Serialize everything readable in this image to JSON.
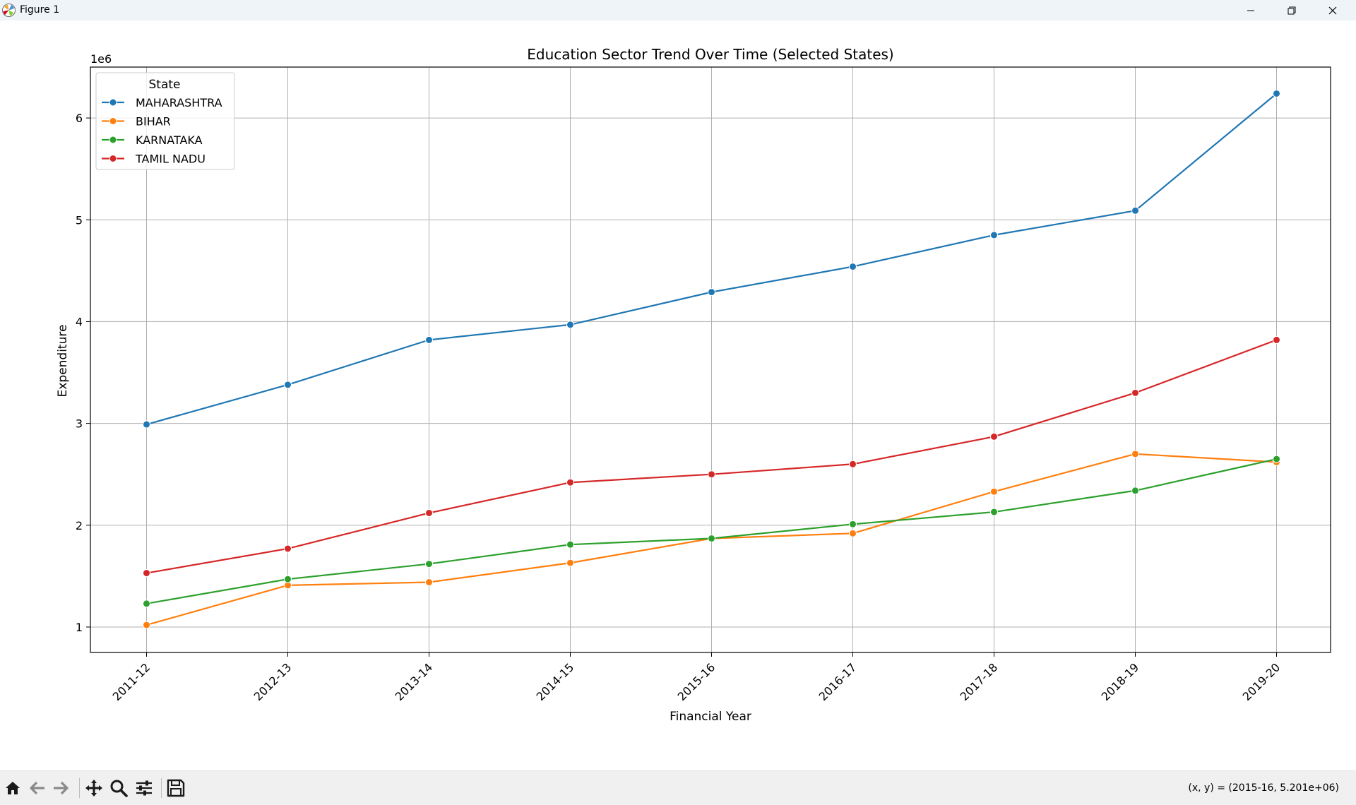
{
  "window": {
    "title": "Figure 1"
  },
  "toolbar": {
    "icons": [
      "home-icon",
      "back-arrow-icon",
      "forward-arrow-icon",
      "pan-move-icon",
      "zoom-magnifier-icon",
      "configure-subplots-icon",
      "save-floppy-icon"
    ],
    "coordinate_readout": "(x, y) = (2015-16, 5.201e+06)"
  },
  "colors": {
    "series": [
      "#1f77b4",
      "#ff7f0e",
      "#2ca02c",
      "#d62728"
    ],
    "grid": "#b0b0b0",
    "titlebar": "#eff4f9",
    "toolbar": "#f0f0f0"
  },
  "chart_data": {
    "type": "line",
    "title": "Education Sector Trend Over Time (Selected States)",
    "xlabel": "Financial Year",
    "ylabel": "Expenditure",
    "y_offset_label": "1e6",
    "categories": [
      "2011-12",
      "2012-13",
      "2013-14",
      "2014-15",
      "2015-16",
      "2016-17",
      "2017-18",
      "2018-19",
      "2019-20"
    ],
    "ylim": [
      750000,
      6500000
    ],
    "yticks": [
      1000000,
      2000000,
      3000000,
      4000000,
      5000000,
      6000000
    ],
    "ytick_labels": [
      "1",
      "2",
      "3",
      "4",
      "5",
      "6"
    ],
    "grid": true,
    "legend": {
      "title": "State",
      "placement": "top-left"
    },
    "markers": "circle",
    "series": [
      {
        "name": "MAHARASHTRA",
        "values": [
          2990000,
          3380000,
          3820000,
          3970000,
          4290000,
          4540000,
          4850000,
          5090000,
          6240000
        ]
      },
      {
        "name": "BIHAR",
        "values": [
          1020000,
          1410000,
          1440000,
          1630000,
          1870000,
          1920000,
          2330000,
          2700000,
          2620000
        ]
      },
      {
        "name": "KARNATAKA",
        "values": [
          1230000,
          1470000,
          1620000,
          1810000,
          1870000,
          2010000,
          2130000,
          2340000,
          2650000
        ]
      },
      {
        "name": "TAMIL NADU",
        "values": [
          1530000,
          1770000,
          2120000,
          2420000,
          2500000,
          2600000,
          2870000,
          3300000,
          3820000
        ]
      }
    ]
  }
}
